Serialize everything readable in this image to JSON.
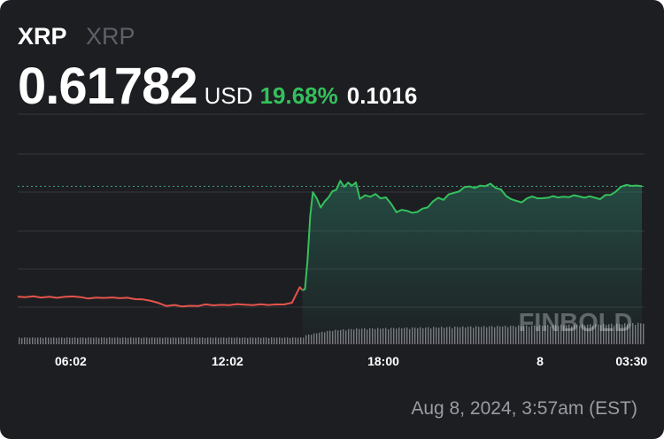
{
  "header": {
    "symbol": "XRP",
    "name": "XRP",
    "price": "0.61782",
    "currency": "USD",
    "change_percent": "19.68%",
    "change_value": "0.1016"
  },
  "timestamp": "Aug 8, 2024, 3:57am (EST)",
  "watermark": "FINBOLD",
  "colors": {
    "up": "#34c05c",
    "down": "#e5544b",
    "background": "#1d1e22",
    "grid": "#34363c",
    "volume": "#8a8c92"
  },
  "chart_data": {
    "type": "line",
    "x_tick_labels": [
      "06:02",
      "12:02",
      "18:00",
      "8",
      "03:30"
    ],
    "x_tick_hours": [
      6.03,
      12.03,
      18.0,
      24.0,
      27.5
    ],
    "x_range_hours": [
      4.0,
      28.0
    ],
    "ylim": [
      0.49,
      0.645
    ],
    "reference_price": 0.6178,
    "grid": true,
    "series": [
      {
        "x_hours": [
          4.0,
          4.3,
          4.6,
          4.9,
          5.2,
          5.5,
          5.8,
          6.1,
          6.4,
          6.7,
          7.0,
          7.3,
          7.6,
          7.9,
          8.2,
          8.5,
          8.8,
          9.1,
          9.4,
          9.7,
          10.0,
          10.3,
          10.6,
          10.9,
          11.2,
          11.5,
          11.8,
          12.1,
          12.4,
          12.7,
          13.0,
          13.3,
          13.6,
          13.9,
          14.2,
          14.5,
          14.8,
          14.9,
          15.0,
          15.1,
          15.2,
          15.3,
          15.45,
          15.6,
          15.75,
          15.9,
          16.05,
          16.2,
          16.35,
          16.5,
          16.65,
          16.8,
          16.95,
          17.1,
          17.3,
          17.5,
          17.7,
          17.9,
          18.1,
          18.3,
          18.5,
          18.7,
          18.9,
          19.1,
          19.3,
          19.5,
          19.7,
          19.9,
          20.1,
          20.3,
          20.5,
          20.7,
          20.9,
          21.1,
          21.3,
          21.5,
          21.7,
          21.9,
          22.1,
          22.3,
          22.5,
          22.7,
          22.9,
          23.1,
          23.3,
          23.5,
          23.7,
          23.9,
          24.1,
          24.3,
          24.5,
          24.7,
          24.9,
          25.1,
          25.3,
          25.5,
          25.7,
          25.9,
          26.1,
          26.3,
          26.5,
          26.7,
          26.9,
          27.1,
          27.3,
          27.5,
          27.7,
          27.9
        ],
        "values": [
          0.5249,
          0.5244,
          0.5252,
          0.5241,
          0.5249,
          0.5239,
          0.5247,
          0.5251,
          0.5245,
          0.5233,
          0.5241,
          0.5238,
          0.5242,
          0.5236,
          0.524,
          0.5228,
          0.5226,
          0.5214,
          0.5195,
          0.517,
          0.5179,
          0.5166,
          0.5172,
          0.517,
          0.5184,
          0.5176,
          0.518,
          0.5177,
          0.5186,
          0.5182,
          0.5178,
          0.5185,
          0.5179,
          0.5184,
          0.5183,
          0.5198,
          0.5329,
          0.5303,
          0.5312,
          0.556,
          0.593,
          0.6129,
          0.6077,
          0.5999,
          0.605,
          0.6085,
          0.6136,
          0.6149,
          0.6224,
          0.6174,
          0.6209,
          0.6183,
          0.6211,
          0.6072,
          0.6103,
          0.609,
          0.6113,
          0.6077,
          0.6085,
          0.603,
          0.596,
          0.598,
          0.5972,
          0.5955,
          0.5962,
          0.599,
          0.6,
          0.6051,
          0.6082,
          0.6064,
          0.611,
          0.6123,
          0.6134,
          0.6171,
          0.6177,
          0.6164,
          0.6183,
          0.6179,
          0.62,
          0.6163,
          0.6152,
          0.6097,
          0.6069,
          0.6055,
          0.6043,
          0.6077,
          0.6092,
          0.6077,
          0.6078,
          0.6082,
          0.6095,
          0.6084,
          0.6091,
          0.6086,
          0.6103,
          0.6093,
          0.6082,
          0.6094,
          0.6082,
          0.607,
          0.6105,
          0.6105,
          0.6133,
          0.6175,
          0.619,
          0.6182,
          0.6185,
          0.6179
        ]
      }
    ],
    "volume": {
      "x_hours": [
        4.0,
        5.0,
        6.0,
        7.0,
        8.0,
        9.0,
        10.0,
        11.0,
        12.0,
        13.0,
        14.0,
        14.9,
        15.0,
        15.5,
        16.0,
        17.0,
        18.0,
        19.0,
        20.0,
        21.0,
        22.0,
        23.0,
        24.0,
        25.0,
        26.0,
        27.0,
        28.0
      ],
      "values": [
        0.3,
        0.3,
        0.3,
        0.3,
        0.3,
        0.3,
        0.3,
        0.3,
        0.3,
        0.3,
        0.3,
        0.3,
        0.4,
        0.52,
        0.62,
        0.7,
        0.72,
        0.74,
        0.76,
        0.78,
        0.8,
        0.82,
        0.84,
        0.86,
        0.88,
        0.91,
        0.95
      ]
    }
  }
}
